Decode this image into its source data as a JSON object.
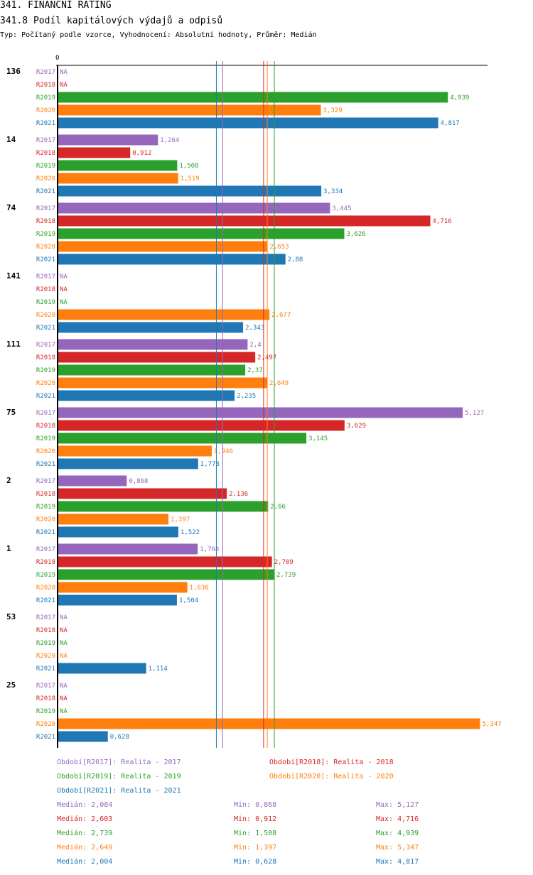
{
  "header": {
    "title": "341. FINANČNÍ RATING",
    "subtitle": "341.8 Podíl kapitálových výdajů a odpisů",
    "info": "Typ: Počítaný podle vzorce, Vyhodnocení: Absolutní hodnoty, Průměr: Medián"
  },
  "chart_data": {
    "type": "bar",
    "orientation": "horizontal",
    "title": "341.8 Podíl kapitálových výdajů a odpisů",
    "axis_zero_label": "0",
    "xlim": [
      0,
      5.5
    ],
    "na_label": "NA",
    "series": [
      {
        "key": "R2017",
        "name": "Realita - 2017",
        "color": "#9467bd"
      },
      {
        "key": "R2018",
        "name": "Realita - 2018",
        "color": "#d62728"
      },
      {
        "key": "R2019",
        "name": "Realita - 2019",
        "color": "#2ca02c"
      },
      {
        "key": "R2020",
        "name": "Realita - 2020",
        "color": "#ff7f0e"
      },
      {
        "key": "R2021",
        "name": "Realita - 2021",
        "color": "#1f77b4"
      }
    ],
    "groups": [
      {
        "label": "136",
        "values": [
          null,
          null,
          4.939,
          3.329,
          4.817
        ],
        "labels": [
          "NA",
          "NA",
          "4,939",
          "3,329",
          "4,817"
        ]
      },
      {
        "label": "14",
        "values": [
          1.264,
          0.912,
          1.508,
          1.519,
          3.334
        ],
        "labels": [
          "1,264",
          "0,912",
          "1,508",
          "1,519",
          "3,334"
        ]
      },
      {
        "label": "74",
        "values": [
          3.445,
          4.716,
          3.626,
          2.653,
          2.88
        ],
        "labels": [
          "3,445",
          "4,716",
          "3,626",
          "2,653",
          "2,88"
        ]
      },
      {
        "label": "141",
        "values": [
          null,
          null,
          null,
          2.677,
          2.343
        ],
        "labels": [
          "NA",
          "NA",
          "NA",
          "2,677",
          "2,343"
        ]
      },
      {
        "label": "111",
        "values": [
          2.4,
          2.497,
          2.37,
          2.649,
          2.235
        ],
        "labels": [
          "2,4",
          "2,497",
          "2,37",
          "2,649",
          "2,235"
        ]
      },
      {
        "label": "75",
        "values": [
          5.127,
          3.629,
          3.145,
          1.946,
          1.773
        ],
        "labels": [
          "5,127",
          "3,629",
          "3,145",
          "1,946",
          "1,773"
        ]
      },
      {
        "label": "2",
        "values": [
          0.868,
          2.136,
          2.66,
          1.397,
          1.522
        ],
        "labels": [
          "0,868",
          "2,136",
          "2,66",
          "1,397",
          "1,522"
        ]
      },
      {
        "label": "1",
        "values": [
          1.768,
          2.709,
          2.739,
          1.636,
          1.504
        ],
        "labels": [
          "1,768",
          "2,709",
          "2,739",
          "1,636",
          "1,504"
        ]
      },
      {
        "label": "53",
        "values": [
          null,
          null,
          null,
          null,
          1.114
        ],
        "labels": [
          "NA",
          "NA",
          "NA",
          "NA",
          "1,114"
        ]
      },
      {
        "label": "25",
        "values": [
          null,
          null,
          null,
          5.347,
          0.628
        ],
        "labels": [
          "NA",
          "NA",
          "NA",
          "5,347",
          "0,628"
        ]
      }
    ],
    "median_lines": [
      {
        "key": "R2017",
        "value": 2.084
      },
      {
        "key": "R2018",
        "value": 2.603
      },
      {
        "key": "R2019",
        "value": 2.739
      },
      {
        "key": "R2020",
        "value": 2.649
      },
      {
        "key": "R2021",
        "value": 2.004
      }
    ]
  },
  "legend": [
    {
      "text": "Období[R2017]: Realita - 2017",
      "color": "#9467bd"
    },
    {
      "text": "Období[R2018]: Realita - 2018",
      "color": "#d62728"
    },
    {
      "text": "Období[R2019]: Realita - 2019",
      "color": "#2ca02c"
    },
    {
      "text": "Období[R2020]: Realita - 2020",
      "color": "#ff7f0e"
    },
    {
      "text": "Období[R2021]: Realita - 2021",
      "color": "#1f77b4"
    }
  ],
  "stats": [
    {
      "color": "#9467bd",
      "median": "Medián: 2,084",
      "min": "Min: 0,868",
      "max": "Max: 5,127"
    },
    {
      "color": "#d62728",
      "median": "Medián: 2,603",
      "min": "Min: 0,912",
      "max": "Max: 4,716"
    },
    {
      "color": "#2ca02c",
      "median": "Medián: 2,739",
      "min": "Min: 1,508",
      "max": "Max: 4,939"
    },
    {
      "color": "#ff7f0e",
      "median": "Medián: 2,649",
      "min": "Min: 1,397",
      "max": "Max: 5,347"
    },
    {
      "color": "#1f77b4",
      "median": "Medián: 2,004",
      "min": "Min: 0,628",
      "max": "Max: 4,817"
    }
  ]
}
